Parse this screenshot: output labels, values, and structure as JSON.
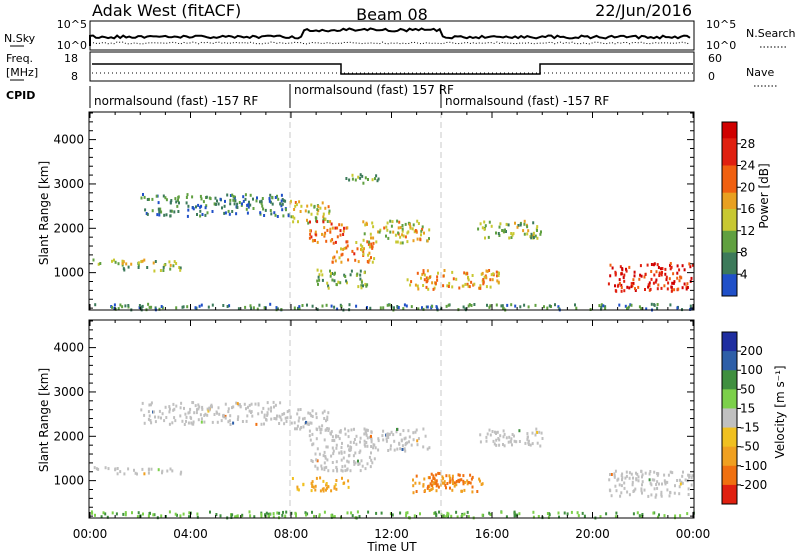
{
  "header": {
    "station": "Adak West (fitACF)",
    "beam": "Beam 08",
    "date": "22/Jun/2016"
  },
  "summary_panels": {
    "nsky_label": "N.Sky",
    "nsky_ticks": [
      "10^5",
      "10^0"
    ],
    "nsearch_label": "N.Search",
    "nsearch_ticks": [
      "10^5",
      "10^0"
    ],
    "freq_label_1": "Freq.",
    "freq_label_2": "[MHz]",
    "freq_ticks": [
      "18",
      "8"
    ],
    "nave_label": "Nave",
    "nave_ticks": [
      "60",
      "0"
    ],
    "cpid_label": "CPID",
    "cpid_segments": [
      {
        "label": "normalsound (fast) -157 RF",
        "start_hour": 0,
        "end_hour": 8
      },
      {
        "label": "normalsound (fast) 157 RF",
        "start_hour": 8,
        "end_hour": 14
      },
      {
        "label": "normalsound (fast) -157 RF",
        "start_hour": 14,
        "end_hour": 24
      }
    ]
  },
  "chart_data": [
    {
      "type": "heatmap",
      "name": "power",
      "ylabel": "Slant Range [km]",
      "colorbar_label": "Power [dB]",
      "colorbar_ticks": [
        "28",
        "24",
        "20",
        "16",
        "12",
        "8",
        "4"
      ],
      "colorbar_range": [
        0,
        32
      ],
      "ylim": [
        180,
        4600
      ],
      "y_ticks": [
        "4000",
        "3000",
        "2000",
        "1000"
      ],
      "xlim_hours": [
        0,
        24
      ],
      "regions": [
        {
          "x": [
            0.1,
            3.6
          ],
          "y": [
            1180,
            1330
          ],
          "level": 0.4
        },
        {
          "x": [
            1.3,
            3.8
          ],
          "y": [
            1070,
            1160
          ],
          "level": 0.3
        },
        {
          "x": [
            2.0,
            7.9
          ],
          "y": [
            2300,
            2800
          ],
          "level": 0.2
        },
        {
          "x": [
            7.9,
            9.5
          ],
          "y": [
            2150,
            2650
          ],
          "level": 0.45
        },
        {
          "x": [
            8.7,
            10.3
          ],
          "y": [
            1700,
            2200
          ],
          "level": 0.7
        },
        {
          "x": [
            9.6,
            11.3
          ],
          "y": [
            1250,
            1750
          ],
          "level": 0.6
        },
        {
          "x": [
            10.8,
            13.5
          ],
          "y": [
            1700,
            2200
          ],
          "level": 0.45
        },
        {
          "x": [
            9.0,
            11.0
          ],
          "y": [
            680,
            1100
          ],
          "level": 0.3
        },
        {
          "x": [
            12.6,
            16.3
          ],
          "y": [
            650,
            1100
          ],
          "level": 0.55
        },
        {
          "x": [
            15.4,
            18.0
          ],
          "y": [
            1800,
            2200
          ],
          "level": 0.35
        },
        {
          "x": [
            20.6,
            24.0
          ],
          "y": [
            600,
            1250
          ],
          "level": 0.85
        },
        {
          "x": [
            0.0,
            24.0
          ],
          "y": [
            190,
            320
          ],
          "level": 0.2
        },
        {
          "x": [
            10.0,
            11.5
          ],
          "y": [
            3050,
            3250
          ],
          "level": 0.3
        }
      ]
    },
    {
      "type": "heatmap",
      "name": "velocity",
      "ylabel": "Slant Range [km]",
      "colorbar_label": "Velocity [m s⁻¹]",
      "colorbar_ticks": [
        "200",
        "100",
        "50",
        "15",
        "-15",
        "-50",
        "-100",
        "-200"
      ],
      "colorbar_range": [
        -250,
        250
      ],
      "ylim": [
        180,
        4600
      ],
      "y_ticks": [
        "4000",
        "3000",
        "2000",
        "1000"
      ],
      "x_ticks": [
        "00:00",
        "04:00",
        "08:00",
        "12:00",
        "16:00",
        "20:00",
        "00:00"
      ],
      "xlabel": "Time UT",
      "xlim_hours": [
        0,
        24
      ],
      "regions": [
        {
          "x": [
            0.1,
            3.6
          ],
          "y": [
            1180,
            1330
          ],
          "value": 0
        },
        {
          "x": [
            2.0,
            7.9
          ],
          "y": [
            2300,
            2800
          ],
          "value": 0
        },
        {
          "x": [
            7.9,
            9.5
          ],
          "y": [
            2150,
            2650
          ],
          "value": 0
        },
        {
          "x": [
            8.7,
            11.3
          ],
          "y": [
            1250,
            2200
          ],
          "value": 0
        },
        {
          "x": [
            10.8,
            13.5
          ],
          "y": [
            1700,
            2200
          ],
          "value": 0
        },
        {
          "x": [
            8.0,
            10.3
          ],
          "y": [
            800,
            1100
          ],
          "value": -40
        },
        {
          "x": [
            12.8,
            15.6
          ],
          "y": [
            750,
            1150
          ],
          "value": -70
        },
        {
          "x": [
            13.4,
            15.2
          ],
          "y": [
            850,
            1200
          ],
          "value": -95
        },
        {
          "x": [
            15.4,
            18.0
          ],
          "y": [
            1800,
            2200
          ],
          "value": 0
        },
        {
          "x": [
            20.6,
            24.0
          ],
          "y": [
            650,
            1250
          ],
          "value": 0
        },
        {
          "x": [
            0.0,
            24.0
          ],
          "y": [
            190,
            330
          ],
          "value": 30
        }
      ]
    }
  ]
}
